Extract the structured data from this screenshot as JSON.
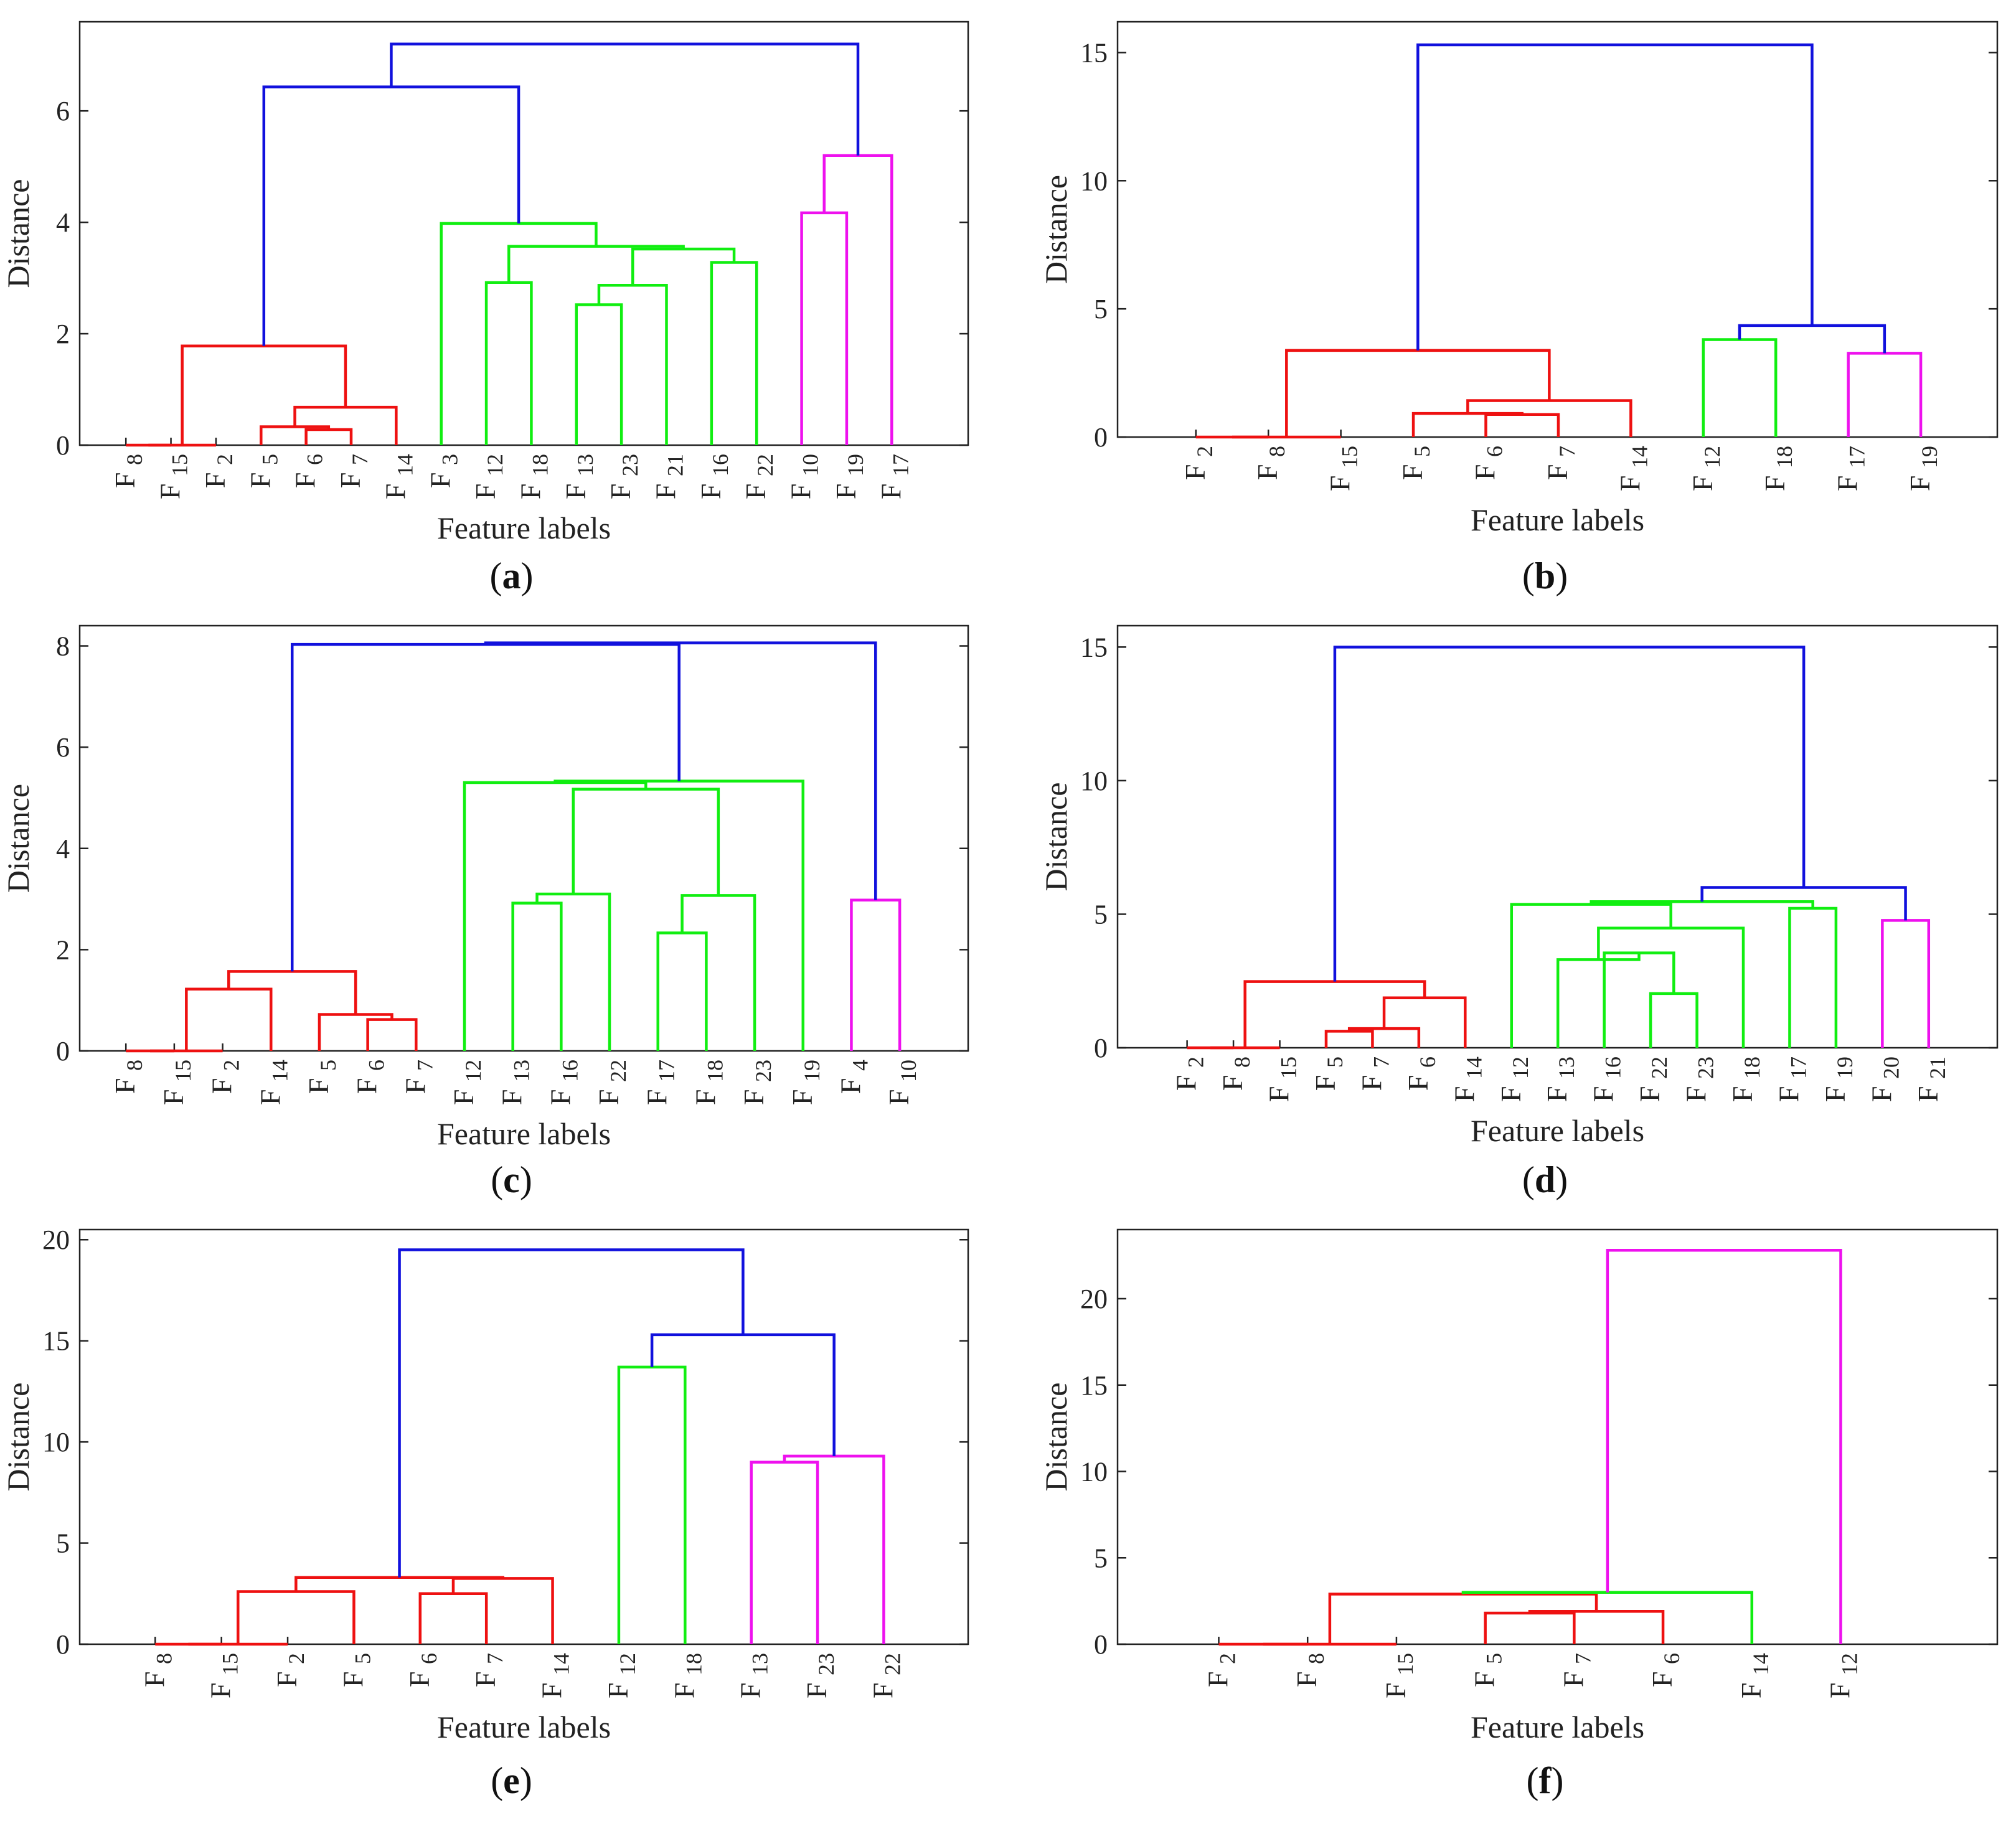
{
  "colors": {
    "red": "#ee1111",
    "green": "#11ee11",
    "magenta": "#ee11ee",
    "blue": "#1111dd"
  },
  "chart_data": [
    {
      "type": "dendrogram",
      "panel_label": "a",
      "xlabel": "Feature labels",
      "ylabel": "Distance",
      "ylim": [
        0,
        7.6
      ],
      "yticks": [
        0,
        2,
        4,
        6
      ],
      "leaves": [
        {
          "base": "F",
          "sub": "8"
        },
        {
          "base": "F",
          "sub": "15"
        },
        {
          "base": "F",
          "sub": "2"
        },
        {
          "base": "F",
          "sub": "5"
        },
        {
          "base": "F",
          "sub": "6"
        },
        {
          "base": "F",
          "sub": "7"
        },
        {
          "base": "F",
          "sub": "14"
        },
        {
          "base": "F",
          "sub": "3"
        },
        {
          "base": "F",
          "sub": "12"
        },
        {
          "base": "F",
          "sub": "18"
        },
        {
          "base": "F",
          "sub": "13"
        },
        {
          "base": "F",
          "sub": "23"
        },
        {
          "base": "F",
          "sub": "21"
        },
        {
          "base": "F",
          "sub": "16"
        },
        {
          "base": "F",
          "sub": "22"
        },
        {
          "base": "F",
          "sub": "10"
        },
        {
          "base": "F",
          "sub": "19"
        },
        {
          "base": "F",
          "sub": "17"
        }
      ],
      "merges": [
        {
          "left": 0,
          "right": 1,
          "height": 0.0,
          "color": "red"
        },
        {
          "left": 18,
          "right": 2,
          "height": 0.0,
          "color": "red"
        },
        {
          "left": 4,
          "right": 5,
          "height": 0.28,
          "color": "red"
        },
        {
          "left": 3,
          "right": 20,
          "height": 0.33,
          "color": "red"
        },
        {
          "left": 21,
          "right": 6,
          "height": 0.68,
          "color": "red"
        },
        {
          "left": 19,
          "right": 22,
          "height": 1.78,
          "color": "red"
        },
        {
          "left": 10,
          "right": 11,
          "height": 2.52,
          "color": "green"
        },
        {
          "left": 24,
          "right": 12,
          "height": 2.87,
          "color": "green"
        },
        {
          "left": 8,
          "right": 9,
          "height": 2.92,
          "color": "green"
        },
        {
          "left": 13,
          "right": 14,
          "height": 3.28,
          "color": "green"
        },
        {
          "left": 25,
          "right": 27,
          "height": 3.52,
          "color": "green"
        },
        {
          "left": 26,
          "right": 28,
          "height": 3.57,
          "color": "green"
        },
        {
          "left": 7,
          "right": 29,
          "height": 3.98,
          "color": "green"
        },
        {
          "left": 23,
          "right": 30,
          "height": 6.43,
          "color": "blue"
        },
        {
          "left": 15,
          "right": 16,
          "height": 4.17,
          "color": "magenta"
        },
        {
          "left": 32,
          "right": 17,
          "height": 5.2,
          "color": "magenta"
        },
        {
          "left": 31,
          "right": 33,
          "height": 7.2,
          "color": "blue"
        }
      ]
    },
    {
      "type": "dendrogram",
      "panel_label": "b",
      "xlabel": "Feature labels",
      "ylabel": "Distance",
      "ylim": [
        0,
        16.2
      ],
      "yticks": [
        0,
        5,
        10,
        15
      ],
      "leaves": [
        {
          "base": "F",
          "sub": "2"
        },
        {
          "base": "F",
          "sub": "8"
        },
        {
          "base": "F",
          "sub": "15"
        },
        {
          "base": "F",
          "sub": "5"
        },
        {
          "base": "F",
          "sub": "6"
        },
        {
          "base": "F",
          "sub": "7"
        },
        {
          "base": "F",
          "sub": "14"
        },
        {
          "base": "F",
          "sub": "12"
        },
        {
          "base": "F",
          "sub": "18"
        },
        {
          "base": "F",
          "sub": "17"
        },
        {
          "base": "F",
          "sub": "19"
        }
      ],
      "merges": [
        {
          "left": 0,
          "right": 1,
          "height": 0.0,
          "color": "red"
        },
        {
          "left": 11,
          "right": 2,
          "height": 0.0,
          "color": "red"
        },
        {
          "left": 4,
          "right": 5,
          "height": 0.88,
          "color": "red"
        },
        {
          "left": 3,
          "right": 13,
          "height": 0.92,
          "color": "red"
        },
        {
          "left": 14,
          "right": 6,
          "height": 1.42,
          "color": "red"
        },
        {
          "left": 12,
          "right": 15,
          "height": 3.38,
          "color": "red"
        },
        {
          "left": 7,
          "right": 8,
          "height": 3.8,
          "color": "green"
        },
        {
          "left": 9,
          "right": 10,
          "height": 3.27,
          "color": "magenta"
        },
        {
          "left": 17,
          "right": 18,
          "height": 4.35,
          "color": "blue"
        },
        {
          "left": 16,
          "right": 19,
          "height": 15.3,
          "color": "blue"
        }
      ]
    },
    {
      "type": "dendrogram",
      "panel_label": "c",
      "xlabel": "Feature labels",
      "ylabel": "Distance",
      "ylim": [
        0,
        8.4
      ],
      "yticks": [
        0,
        2,
        4,
        6,
        8
      ],
      "leaves": [
        {
          "base": "F",
          "sub": "8"
        },
        {
          "base": "F",
          "sub": "15"
        },
        {
          "base": "F",
          "sub": "2"
        },
        {
          "base": "F",
          "sub": "14"
        },
        {
          "base": "F",
          "sub": "5"
        },
        {
          "base": "F",
          "sub": "6"
        },
        {
          "base": "F",
          "sub": "7"
        },
        {
          "base": "F",
          "sub": "12"
        },
        {
          "base": "F",
          "sub": "13"
        },
        {
          "base": "F",
          "sub": "16"
        },
        {
          "base": "F",
          "sub": "22"
        },
        {
          "base": "F",
          "sub": "17"
        },
        {
          "base": "F",
          "sub": "18"
        },
        {
          "base": "F",
          "sub": "23"
        },
        {
          "base": "F",
          "sub": "19"
        },
        {
          "base": "F",
          "sub": "4"
        },
        {
          "base": "F",
          "sub": "10"
        }
      ],
      "merges": [
        {
          "left": 0,
          "right": 1,
          "height": 0.0,
          "color": "red"
        },
        {
          "left": 17,
          "right": 2,
          "height": 0.0,
          "color": "red"
        },
        {
          "left": 5,
          "right": 6,
          "height": 0.62,
          "color": "red"
        },
        {
          "left": 4,
          "right": 19,
          "height": 0.72,
          "color": "red"
        },
        {
          "left": 18,
          "right": 3,
          "height": 1.22,
          "color": "red"
        },
        {
          "left": 21,
          "right": 20,
          "height": 1.57,
          "color": "red"
        },
        {
          "left": 8,
          "right": 9,
          "height": 2.92,
          "color": "green"
        },
        {
          "left": 23,
          "right": 10,
          "height": 3.1,
          "color": "green"
        },
        {
          "left": 11,
          "right": 12,
          "height": 2.33,
          "color": "green"
        },
        {
          "left": 25,
          "right": 13,
          "height": 3.07,
          "color": "green"
        },
        {
          "left": 24,
          "right": 26,
          "height": 5.17,
          "color": "green"
        },
        {
          "left": 7,
          "right": 27,
          "height": 5.3,
          "color": "green"
        },
        {
          "left": 28,
          "right": 14,
          "height": 5.33,
          "color": "green"
        },
        {
          "left": 22,
          "right": 29,
          "height": 8.03,
          "color": "blue"
        },
        {
          "left": 15,
          "right": 16,
          "height": 2.98,
          "color": "magenta"
        },
        {
          "left": 30,
          "right": 31,
          "height": 8.06,
          "color": "blue"
        }
      ]
    },
    {
      "type": "dendrogram",
      "panel_label": "d",
      "xlabel": "Feature labels",
      "ylabel": "Distance",
      "ylim": [
        0,
        15.8
      ],
      "yticks": [
        0,
        5,
        10,
        15
      ],
      "leaves": [
        {
          "base": "F",
          "sub": "2"
        },
        {
          "base": "F",
          "sub": "8"
        },
        {
          "base": "F",
          "sub": "15"
        },
        {
          "base": "F",
          "sub": "5"
        },
        {
          "base": "F",
          "sub": "7"
        },
        {
          "base": "F",
          "sub": "6"
        },
        {
          "base": "F",
          "sub": "14"
        },
        {
          "base": "F",
          "sub": "12"
        },
        {
          "base": "F",
          "sub": "13"
        },
        {
          "base": "F",
          "sub": "16"
        },
        {
          "base": "F",
          "sub": "22"
        },
        {
          "base": "F",
          "sub": "23"
        },
        {
          "base": "F",
          "sub": "18"
        },
        {
          "base": "F",
          "sub": "17"
        },
        {
          "base": "F",
          "sub": "19"
        },
        {
          "base": "F",
          "sub": "20"
        },
        {
          "base": "F",
          "sub": "21"
        }
      ],
      "merges": [
        {
          "left": 0,
          "right": 1,
          "height": 0.0,
          "color": "red"
        },
        {
          "left": 17,
          "right": 2,
          "height": 0.0,
          "color": "red"
        },
        {
          "left": 3,
          "right": 4,
          "height": 0.62,
          "color": "red"
        },
        {
          "left": 19,
          "right": 5,
          "height": 0.72,
          "color": "red"
        },
        {
          "left": 20,
          "right": 6,
          "height": 1.87,
          "color": "red"
        },
        {
          "left": 18,
          "right": 21,
          "height": 2.48,
          "color": "red"
        },
        {
          "left": 10,
          "right": 11,
          "height": 2.03,
          "color": "green"
        },
        {
          "left": 9,
          "right": 23,
          "height": 3.55,
          "color": "green"
        },
        {
          "left": 8,
          "right": 24,
          "height": 3.3,
          "color": "green"
        },
        {
          "left": 25,
          "right": 12,
          "height": 4.48,
          "color": "green"
        },
        {
          "left": 7,
          "right": 26,
          "height": 5.37,
          "color": "green"
        },
        {
          "left": 13,
          "right": 14,
          "height": 5.22,
          "color": "green"
        },
        {
          "left": 27,
          "right": 28,
          "height": 5.47,
          "color": "green"
        },
        {
          "left": 15,
          "right": 16,
          "height": 4.77,
          "color": "magenta"
        },
        {
          "left": 29,
          "right": 30,
          "height": 6.0,
          "color": "blue"
        },
        {
          "left": 22,
          "right": 31,
          "height": 15.0,
          "color": "blue"
        }
      ]
    },
    {
      "type": "dendrogram",
      "panel_label": "e",
      "xlabel": "Feature labels",
      "ylabel": "Distance",
      "ylim": [
        0,
        20.5
      ],
      "yticks": [
        0,
        5,
        10,
        15,
        20
      ],
      "leaves": [
        {
          "base": "F",
          "sub": "8"
        },
        {
          "base": "F",
          "sub": "15"
        },
        {
          "base": "F",
          "sub": "2"
        },
        {
          "base": "F",
          "sub": "5"
        },
        {
          "base": "F",
          "sub": "6"
        },
        {
          "base": "F",
          "sub": "7"
        },
        {
          "base": "F",
          "sub": "14"
        },
        {
          "base": "F",
          "sub": "12"
        },
        {
          "base": "F",
          "sub": "18"
        },
        {
          "base": "F",
          "sub": "13"
        },
        {
          "base": "F",
          "sub": "23"
        },
        {
          "base": "F",
          "sub": "22"
        }
      ],
      "merges": [
        {
          "left": 0,
          "right": 1,
          "height": 0.0,
          "color": "red"
        },
        {
          "left": 12,
          "right": 2,
          "height": 0.0,
          "color": "red"
        },
        {
          "left": 13,
          "right": 3,
          "height": 2.6,
          "color": "red"
        },
        {
          "left": 4,
          "right": 5,
          "height": 2.5,
          "color": "red"
        },
        {
          "left": 15,
          "right": 6,
          "height": 3.25,
          "color": "red"
        },
        {
          "left": 14,
          "right": 16,
          "height": 3.3,
          "color": "red"
        },
        {
          "left": 7,
          "right": 8,
          "height": 13.7,
          "color": "green"
        },
        {
          "left": 9,
          "right": 10,
          "height": 9.0,
          "color": "magenta"
        },
        {
          "left": 19,
          "right": 11,
          "height": 9.3,
          "color": "magenta"
        },
        {
          "left": 18,
          "right": 20,
          "height": 15.3,
          "color": "blue"
        },
        {
          "left": 17,
          "right": 21,
          "height": 19.5,
          "color": "blue"
        }
      ]
    },
    {
      "type": "dendrogram",
      "panel_label": "f",
      "xlabel": "Feature labels",
      "ylabel": "Distance",
      "ylim": [
        0,
        24
      ],
      "yticks": [
        0,
        5,
        10,
        15,
        20
      ],
      "leaves": [
        {
          "base": "F",
          "sub": "2"
        },
        {
          "base": "F",
          "sub": "8"
        },
        {
          "base": "F",
          "sub": "15"
        },
        {
          "base": "F",
          "sub": "5"
        },
        {
          "base": "F",
          "sub": "7"
        },
        {
          "base": "F",
          "sub": "6"
        },
        {
          "base": "F",
          "sub": "14"
        },
        {
          "base": "F",
          "sub": "12"
        }
      ],
      "merges": [
        {
          "left": 0,
          "right": 1,
          "height": 0.0,
          "color": "red"
        },
        {
          "left": 8,
          "right": 2,
          "height": 0.0,
          "color": "red"
        },
        {
          "left": 3,
          "right": 4,
          "height": 1.8,
          "color": "red"
        },
        {
          "left": 10,
          "right": 5,
          "height": 1.9,
          "color": "red"
        },
        {
          "left": 9,
          "right": 11,
          "height": 2.9,
          "color": "red"
        },
        {
          "left": 12,
          "right": 6,
          "height": 3.0,
          "color": "green"
        },
        {
          "left": 13,
          "right": 7,
          "height": 22.8,
          "color": "magenta"
        }
      ]
    }
  ]
}
